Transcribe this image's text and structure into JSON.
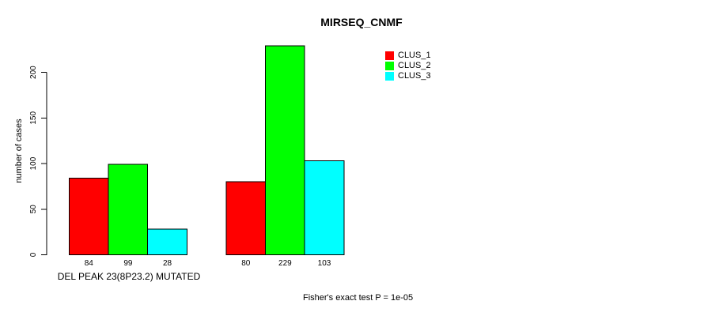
{
  "chart_data": {
    "type": "bar",
    "title": "MIRSEQ_CNMF",
    "ylabel": "number of cases",
    "xlabel": "",
    "annotation": "Fisher's exact test P = 1e-05",
    "categories": [
      "DEL PEAK 23(8P23.2) MUTATED",
      ""
    ],
    "series": [
      {
        "name": "CLUS_1",
        "color": "#ff0000",
        "values": [
          84,
          80
        ]
      },
      {
        "name": "CLUS_2",
        "color": "#00ff00",
        "values": [
          99,
          229
        ]
      },
      {
        "name": "CLUS_3",
        "color": "#00ffff",
        "values": [
          28,
          103
        ]
      }
    ],
    "value_labels": [
      [
        "84",
        "99",
        "28"
      ],
      [
        "80",
        "229",
        "103"
      ]
    ],
    "y_ticks": [
      "0",
      "50",
      "100",
      "150",
      "200"
    ],
    "ylim": [
      0,
      230
    ],
    "grid": false,
    "legend_position": "top-right",
    "bar_border_color": "#000000",
    "axis_color": "#000000"
  }
}
